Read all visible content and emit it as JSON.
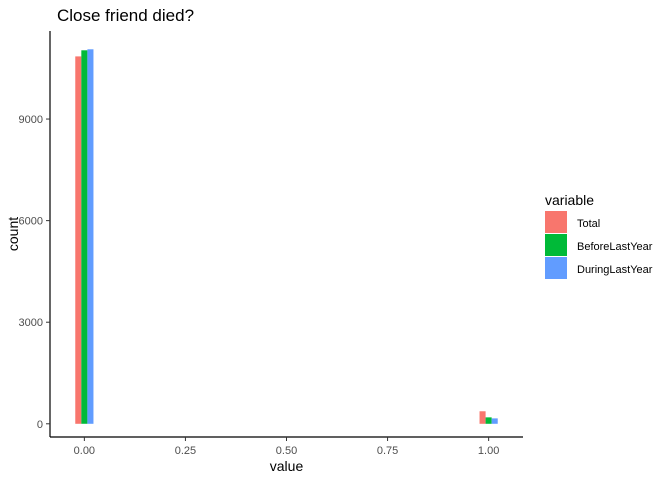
{
  "chart_data": {
    "type": "bar",
    "title": "Close friend died?",
    "xlabel": "value",
    "ylabel": "count",
    "x": [
      0,
      1
    ],
    "xlim": [
      -0.085,
      1.085
    ],
    "ylim": [
      -390,
      11600
    ],
    "xticks": [
      0,
      0.25,
      0.5,
      0.75,
      1
    ],
    "xtick_labels": [
      "0.00",
      "0.25",
      "0.50",
      "0.75",
      "1.00"
    ],
    "yticks": [
      0,
      3000,
      6000,
      9000
    ],
    "ytick_labels": [
      "0",
      "3000",
      "6000",
      "9000"
    ],
    "grid": false,
    "legend": {
      "title": "variable",
      "position": "right"
    },
    "series": [
      {
        "name": "Total",
        "color": "#F8766D",
        "values": [
          10850,
          370
        ]
      },
      {
        "name": "BeforeLastYear",
        "color": "#00BA38",
        "values": [
          11030,
          190
        ]
      },
      {
        "name": "DuringLastYear",
        "color": "#619CFF",
        "values": [
          11060,
          160
        ]
      }
    ]
  }
}
